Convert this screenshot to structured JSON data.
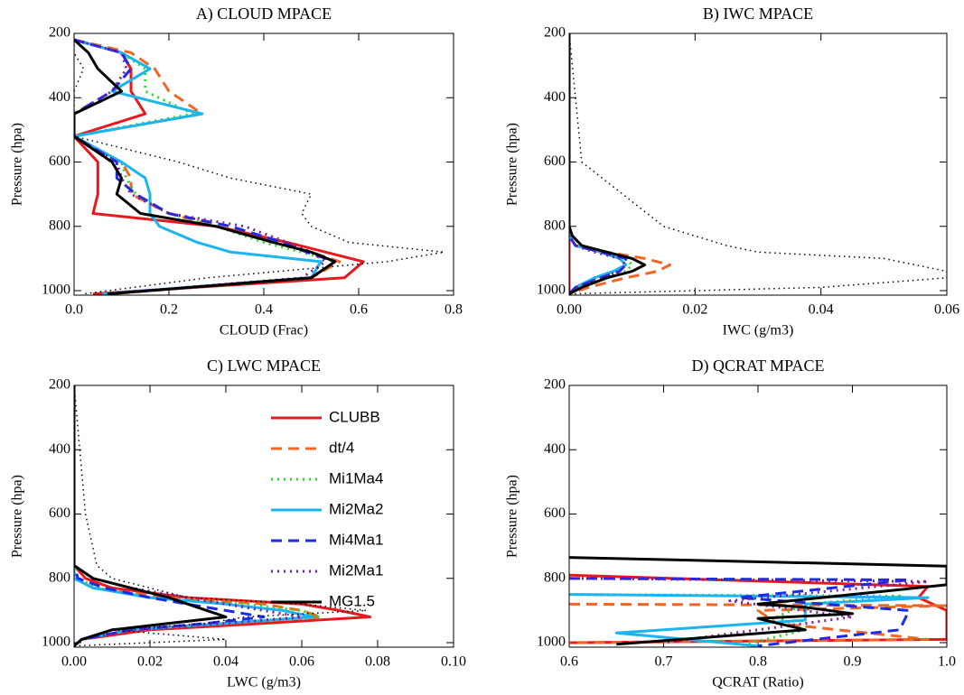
{
  "chart_data": [
    {
      "type": "line",
      "title": "A) CLOUD MPACE",
      "xlabel": "CLOUD (Frac)",
      "ylabel": "Pressure (hpa)",
      "xlim": [
        0,
        0.8
      ],
      "xticks": [
        {
          "value": 0,
          "label": "0.0"
        },
        0.2,
        0.4,
        0.6,
        0.8
      ],
      "ylim": [
        1014,
        200
      ],
      "yticks": [
        200,
        400,
        600,
        800,
        1000
      ],
      "levels": [
        220,
        260,
        310,
        380,
        450,
        520,
        600,
        650,
        700,
        760,
        800,
        850,
        880,
        910,
        960,
        1010
      ],
      "series": [
        {
          "color": "#e8191c",
          "dash": "solid",
          "values": [
            0.0,
            0.1,
            0.12,
            0.12,
            0.15,
            0.0,
            0.05,
            0.05,
            0.05,
            0.04,
            0.3,
            0.45,
            0.53,
            0.61,
            0.57,
            0.04
          ]
        },
        {
          "color": "#f26522",
          "dash": "dashed",
          "values": [
            0.0,
            0.12,
            0.17,
            0.2,
            0.27,
            0.0,
            0.1,
            0.12,
            0.12,
            0.2,
            0.3,
            0.42,
            0.5,
            0.56,
            0.5,
            0.08
          ]
        },
        {
          "color": "#22dd22",
          "dash": "dotted",
          "values": [
            0.0,
            0.1,
            0.15,
            0.15,
            0.25,
            0.0,
            0.1,
            0.11,
            0.13,
            0.2,
            0.3,
            0.4,
            0.48,
            0.55,
            0.5,
            0.07
          ]
        },
        {
          "color": "#1ab4f0",
          "dash": "solid",
          "values": [
            0.0,
            0.1,
            0.16,
            0.08,
            0.27,
            0.0,
            0.1,
            0.15,
            0.16,
            0.16,
            0.18,
            0.26,
            0.33,
            0.52,
            0.5,
            0.06
          ]
        },
        {
          "color": "#1a2ae6",
          "dash": "dashed",
          "values": [
            0.0,
            0.1,
            0.12,
            0.08,
            0.0,
            0.0,
            0.09,
            0.09,
            0.13,
            0.2,
            0.33,
            0.44,
            0.49,
            0.55,
            0.5,
            0.07
          ]
        },
        {
          "color": "#7a1fa2",
          "dash": "dotted",
          "values": [
            0.0,
            0.1,
            0.11,
            0.08,
            0.0,
            0.0,
            0.09,
            0.1,
            0.12,
            0.2,
            0.36,
            0.45,
            0.5,
            0.53,
            0.48,
            0.07
          ]
        },
        {
          "color": "#000000",
          "dash": "solid",
          "values": [
            0.0,
            0.03,
            0.05,
            0.1,
            0.0,
            0.0,
            0.08,
            0.1,
            0.09,
            0.14,
            0.3,
            0.42,
            0.5,
            0.55,
            0.5,
            0.07
          ]
        },
        {
          "color": "#000000",
          "dash": "thin-dotted",
          "values": [
            0.0,
            0.0,
            0.02,
            0.0,
            0.0,
            0.0,
            0.22,
            0.33,
            0.5,
            0.48,
            0.5,
            0.58,
            0.78,
            0.66,
            0.28,
            0.02
          ]
        }
      ]
    },
    {
      "type": "line",
      "title": "B) IWC MPACE",
      "xlabel": "IWC (g/m3)",
      "ylabel": "Pressure (hpa)",
      "xlim": [
        0,
        0.06
      ],
      "xticks": [
        {
          "value": 0,
          "label": "0.00"
        },
        0.02,
        0.04,
        0.06
      ],
      "ylim": [
        1014,
        200
      ],
      "yticks": [
        200,
        400,
        600,
        800,
        1000
      ],
      "levels": [
        200,
        600,
        800,
        830,
        860,
        880,
        900,
        920,
        940,
        960,
        990,
        1010
      ],
      "series": [
        {
          "color": "#e8191c",
          "dash": "solid",
          "values": [
            0,
            0,
            0,
            0,
            0,
            0,
            0,
            0,
            0,
            0,
            0,
            0
          ]
        },
        {
          "color": "#f26522",
          "dash": "dashed",
          "values": [
            0,
            0,
            0,
            0,
            0.001,
            0.006,
            0.012,
            0.016,
            0.014,
            0.009,
            0.003,
            0
          ]
        },
        {
          "color": "#22dd22",
          "dash": "dotted",
          "values": [
            0,
            0,
            0,
            0,
            0.001,
            0.005,
            0.009,
            0.01,
            0.009,
            0.006,
            0.002,
            0
          ]
        },
        {
          "color": "#1ab4f0",
          "dash": "solid",
          "values": [
            0,
            0,
            0,
            0,
            0.001,
            0.005,
            0.008,
            0.009,
            0.007,
            0.004,
            0.001,
            0
          ]
        },
        {
          "color": "#1a2ae6",
          "dash": "dashed",
          "values": [
            0,
            0,
            0,
            0,
            0.001,
            0.005,
            0.009,
            0.009,
            0.008,
            0.005,
            0.001,
            0
          ]
        },
        {
          "color": "#7a1fa2",
          "dash": "dotted",
          "values": [
            0,
            0,
            0,
            0,
            0.001,
            0.004,
            0.008,
            0.009,
            0.008,
            0.005,
            0.001,
            0
          ]
        },
        {
          "color": "#000000",
          "dash": "solid",
          "values": [
            0,
            0,
            0,
            0.0005,
            0.002,
            0.006,
            0.01,
            0.012,
            0.01,
            0.006,
            0.002,
            0
          ]
        },
        {
          "color": "#000000",
          "dash": "thin-dotted",
          "values": [
            0,
            0.002,
            0.015,
            0.02,
            0.025,
            0.03,
            0.05,
            0.055,
            0.06,
            0.06,
            0.04,
            0
          ]
        }
      ]
    },
    {
      "type": "line",
      "title": "C) LWC MPACE",
      "xlabel": "LWC (g/m3)",
      "ylabel": "Pressure (hpa)",
      "xlim": [
        0,
        0.1
      ],
      "xticks": [
        {
          "value": 0,
          "label": "0.00"
        },
        0.02,
        0.04,
        0.06,
        0.08,
        {
          "value": 0.1,
          "label": "0.10"
        }
      ],
      "ylim": [
        1014,
        200
      ],
      "yticks": [
        200,
        400,
        600,
        800,
        1000
      ],
      "legend": "upper right",
      "levels": [
        200,
        600,
        760,
        800,
        830,
        860,
        880,
        900,
        920,
        940,
        960,
        990,
        1010
      ],
      "series": [
        {
          "name": "CLUBB",
          "color": "#e8191c",
          "dash": "solid",
          "values": [
            0,
            0,
            0,
            0.003,
            0.01,
            0.03,
            0.06,
            0.07,
            0.078,
            0.05,
            0.02,
            0.002,
            0
          ]
        },
        {
          "name": "dt/4",
          "color": "#f26522",
          "dash": "dashed",
          "values": [
            0,
            0,
            0,
            0,
            0.005,
            0.025,
            0.05,
            0.06,
            0.065,
            0.04,
            0.015,
            0.002,
            0
          ]
        },
        {
          "name": "Mi1Ma4",
          "color": "#22dd22",
          "dash": "dotted",
          "values": [
            0,
            0,
            0,
            0.001,
            0.006,
            0.02,
            0.045,
            0.06,
            0.065,
            0.04,
            0.015,
            0.002,
            0
          ]
        },
        {
          "name": "Mi2Ma2",
          "color": "#1ab4f0",
          "dash": "solid",
          "values": [
            0,
            0,
            0,
            0,
            0.005,
            0.02,
            0.04,
            0.055,
            0.063,
            0.04,
            0.015,
            0.002,
            0
          ]
        },
        {
          "name": "Mi4Ma1",
          "color": "#1a2ae6",
          "dash": "dashed",
          "values": [
            0,
            0,
            0,
            0.001,
            0.008,
            0.02,
            0.03,
            0.04,
            0.05,
            0.035,
            0.015,
            0.002,
            0
          ]
        },
        {
          "name": "Mi2Ma1",
          "color": "#7a1fa2",
          "dash": "dotted",
          "values": [
            0,
            0,
            0,
            0.005,
            0.015,
            0.03,
            0.04,
            0.05,
            0.06,
            0.04,
            0.015,
            0.002,
            0
          ]
        },
        {
          "name": "MG1.5",
          "color": "#000000",
          "dash": "solid",
          "values": [
            0,
            0,
            0,
            0.005,
            0.015,
            0.025,
            0.03,
            0.035,
            0.04,
            0.025,
            0.01,
            0.002,
            0
          ]
        },
        {
          "color": "#000000",
          "dash": "thin-dotted",
          "values": [
            0,
            0.003,
            0.006,
            0.01,
            0.02,
            0.03,
            0.06,
            0.077,
            0.045,
            0.035,
            0.01,
            0.04,
            0
          ]
        }
      ]
    },
    {
      "type": "line",
      "title": "D) QCRAT MPACE",
      "xlabel": "QCRAT (Ratio)",
      "ylabel": "Pressure (hpa)",
      "xlim": [
        0.6,
        1.0
      ],
      "xticks": [
        0.6,
        0.7,
        0.8,
        0.9,
        {
          "value": 1.0,
          "label": "1.0"
        }
      ],
      "ylim": [
        1014,
        200
      ],
      "yticks": [
        200,
        400,
        600,
        800,
        1000
      ],
      "series": [
        {
          "color": "#e8191c",
          "dash": "solid",
          "levels": [
            790,
            825,
            860,
            900,
            990,
            1000
          ],
          "values": [
            0.6,
            0.98,
            0.97,
            1.0,
            1.0,
            0.6
          ]
        },
        {
          "color": "#f26522",
          "dash": "dashed",
          "levels": [
            880,
            885,
            900,
            940,
            990,
            1000
          ],
          "values": [
            0.6,
            1.0,
            0.8,
            0.82,
            0.98,
            0.6
          ]
        },
        {
          "color": "#22dd22",
          "dash": "dotted",
          "levels": [
            850,
            855,
            880,
            920,
            960,
            1010
          ],
          "values": [
            0.6,
            0.95,
            0.85,
            0.82,
            0.85,
            0.78
          ]
        },
        {
          "color": "#1ab4f0",
          "dash": "solid",
          "levels": [
            850,
            860,
            880,
            930,
            970,
            1010
          ],
          "values": [
            0.6,
            0.98,
            0.85,
            0.85,
            0.65,
            0.8
          ]
        },
        {
          "color": "#1a2ae6",
          "dash": "dashed",
          "levels": [
            800,
            805,
            860,
            900,
            960,
            1010
          ],
          "values": [
            0.6,
            0.96,
            0.78,
            0.96,
            0.95,
            0.8
          ]
        },
        {
          "color": "#7a1fa2",
          "dash": "dotted",
          "levels": [
            800,
            810,
            870,
            920,
            980,
            1000
          ],
          "values": [
            0.6,
            0.98,
            0.77,
            0.9,
            0.75,
            0.7
          ]
        },
        {
          "color": "#000000",
          "dash": "solid",
          "levels": [
            735,
            762,
            820,
            880,
            890,
            910,
            925,
            960,
            1005
          ],
          "values": [
            0.6,
            1.0,
            1.0,
            0.8,
            0.85,
            0.9,
            0.8,
            0.85,
            0.65
          ]
        }
      ]
    }
  ]
}
